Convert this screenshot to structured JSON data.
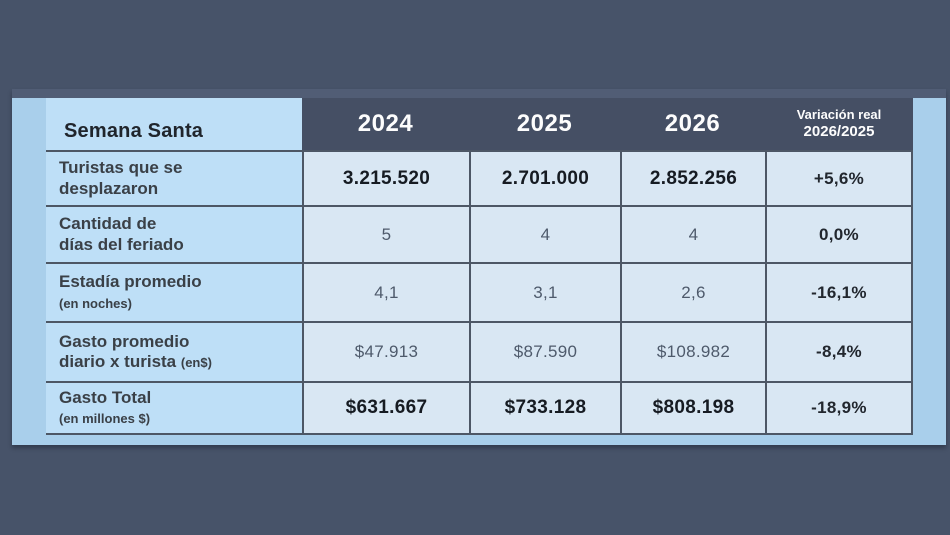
{
  "colors": {
    "page_bg": "#475369",
    "panel_bg": "#a9cfeb",
    "panel_top_strip": "#515d75",
    "header_bg": "#454f64",
    "label_cell_bg": "#bedff7",
    "data_cell_bg": "#d9e7f3",
    "grid_line": "#4d5765",
    "header_text": "#fdfdfd"
  },
  "table": {
    "title": "Semana Santa",
    "years": [
      "2024",
      "2025",
      "2026"
    ],
    "variation_header": {
      "line1": "Variación real",
      "line2": "2026/2025"
    },
    "rows": [
      {
        "label_line1": "Turistas que se",
        "label_line2": "desplazaron",
        "note": "",
        "values": [
          "3.215.520",
          "2.701.000",
          "2.852.256"
        ],
        "variation": "+5,6%"
      },
      {
        "label_line1": "Cantidad de",
        "label_line2": "días del feriado",
        "note": "",
        "values": [
          "5",
          "4",
          "4"
        ],
        "variation": "0,0%"
      },
      {
        "label_line1": "Estadía promedio",
        "label_line2": "",
        "note": "(en noches)",
        "values": [
          "4,1",
          "3,1",
          "2,6"
        ],
        "variation": "-16,1%"
      },
      {
        "label_line1": "Gasto promedio",
        "label_line2": "diario x turista",
        "note": "(en$)",
        "values": [
          "$47.913",
          "$87.590",
          "$108.982"
        ],
        "variation": "-8,4%"
      },
      {
        "label_line1": "Gasto Total",
        "label_line2": "",
        "note": "(en millones $)",
        "values": [
          "$631.667",
          "$733.128",
          "$808.198"
        ],
        "variation": "-18,9%"
      }
    ]
  },
  "chart_data": {
    "type": "table",
    "title": "Semana Santa",
    "columns": [
      "2024",
      "2025",
      "2026",
      "Variación real 2026/2025"
    ],
    "rows": [
      {
        "label": "Turistas que se desplazaron",
        "2024": "3.215.520",
        "2025": "2.701.000",
        "2026": "2.852.256",
        "variacion_real_2026_2025": "+5,6%"
      },
      {
        "label": "Cantidad de días del feriado",
        "2024": "5",
        "2025": "4",
        "2026": "4",
        "variacion_real_2026_2025": "0,0%"
      },
      {
        "label": "Estadía promedio (en noches)",
        "2024": "4,1",
        "2025": "3,1",
        "2026": "2,6",
        "variacion_real_2026_2025": "-16,1%"
      },
      {
        "label": "Gasto promedio diario x turista (en$)",
        "2024": "$47.913",
        "2025": "$87.590",
        "2026": "$108.982",
        "variacion_real_2026_2025": "-8,4%"
      },
      {
        "label": "Gasto Total (en millones $)",
        "2024": "$631.667",
        "2025": "$733.128",
        "2026": "$808.198",
        "variacion_real_2026_2025": "-18,9%"
      }
    ]
  }
}
